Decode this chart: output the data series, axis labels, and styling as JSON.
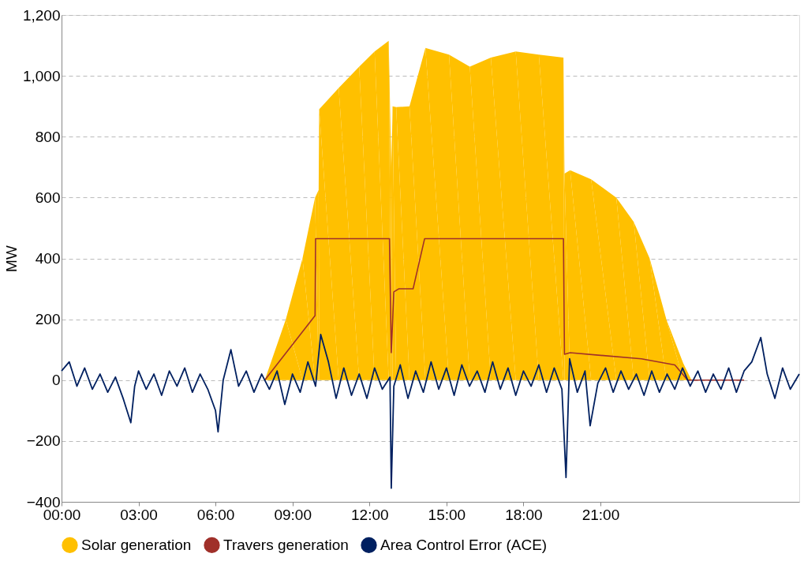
{
  "chart_data": {
    "type": "area",
    "ylabel": "MW",
    "legend": "bottom",
    "grid": "y",
    "xlim": [
      0,
      28.75
    ],
    "xticks": [
      {
        "value": 0,
        "label": "00:00"
      },
      {
        "value": 3,
        "label": "03:00"
      },
      {
        "value": 6,
        "label": "06:00"
      },
      {
        "value": 9,
        "label": "09:00"
      },
      {
        "value": 12,
        "label": "12:00"
      },
      {
        "value": 15,
        "label": "15:00"
      },
      {
        "value": 18,
        "label": "18:00"
      },
      {
        "value": 21,
        "label": "21:00"
      }
    ],
    "ylim": [
      -400,
      1200
    ],
    "yticks": [
      -400,
      -200,
      0,
      200,
      400,
      600,
      800,
      {
        "value": 1000,
        "label": "1,000"
      },
      {
        "value": 1200,
        "label": "1,200"
      }
    ],
    "series": [
      {
        "name": "Solar generation",
        "color": "#ffc000",
        "x": [
          7.92,
          8.74,
          9.39,
          9.88,
          10.02,
          10.04,
          10.8,
          11.6,
          12.2,
          12.75,
          12.85,
          12.9,
          13.04,
          13.56,
          14.18,
          15.1,
          15.91,
          16.73,
          17.7,
          18.6,
          19.56,
          19.6,
          19.82,
          20.64,
          21.62,
          22.3,
          22.92,
          23.57,
          24.23,
          24.55
        ],
        "values": [
          0,
          200,
          400,
          600,
          625,
          890,
          960,
          1030,
          1080,
          1115,
          700,
          900,
          897,
          900,
          1092,
          1070,
          1030,
          1060,
          1080,
          1070,
          1060,
          679,
          690,
          660,
          600,
          520,
          400,
          200,
          55,
          0
        ]
      },
      {
        "name": "Travers generation",
        "type": "line",
        "color": "#a0302a",
        "x": [
          7.92,
          9.88,
          9.9,
          12.78,
          12.85,
          12.95,
          13.14,
          13.7,
          14.15,
          19.56,
          19.6,
          19.82,
          22.6,
          23.9,
          24.4,
          26.6
        ],
        "values": [
          0,
          212,
          465,
          465,
          90,
          290,
          300,
          300,
          465,
          465,
          85,
          90,
          70,
          50,
          0,
          0
        ]
      },
      {
        "name": "Area Control Error (ACE)",
        "type": "line",
        "color": "#002060",
        "x": [
          0,
          0.3,
          0.6,
          0.9,
          1.2,
          1.5,
          1.8,
          2.1,
          2.4,
          2.7,
          2.85,
          3.0,
          3.3,
          3.6,
          3.9,
          4.2,
          4.5,
          4.8,
          5.1,
          5.4,
          5.7,
          6.0,
          6.1,
          6.3,
          6.6,
          6.9,
          7.2,
          7.5,
          7.8,
          8.1,
          8.4,
          8.7,
          9.0,
          9.3,
          9.6,
          9.9,
          10.1,
          10.4,
          10.7,
          11.0,
          11.3,
          11.6,
          11.9,
          12.2,
          12.5,
          12.8,
          12.85,
          12.95,
          13.2,
          13.5,
          13.8,
          14.1,
          14.4,
          14.7,
          15.0,
          15.3,
          15.6,
          15.9,
          16.2,
          16.5,
          16.8,
          17.1,
          17.4,
          17.7,
          18.0,
          18.3,
          18.6,
          18.9,
          19.2,
          19.5,
          19.66,
          19.8,
          20.1,
          20.4,
          20.6,
          20.9,
          21.2,
          21.5,
          21.8,
          22.1,
          22.4,
          22.7,
          23.0,
          23.3,
          23.6,
          23.9,
          24.2,
          24.5,
          24.8,
          25.1,
          25.4,
          25.7,
          26.0,
          26.3,
          26.6,
          26.9,
          27.25,
          27.5,
          27.8,
          28.1,
          28.4,
          28.75
        ],
        "values": [
          30,
          60,
          -20,
          40,
          -30,
          20,
          -40,
          10,
          -60,
          -140,
          -20,
          30,
          -30,
          20,
          -50,
          30,
          -20,
          40,
          -40,
          20,
          -30,
          -100,
          -170,
          0,
          100,
          -20,
          30,
          -40,
          20,
          -30,
          30,
          -80,
          20,
          -40,
          60,
          -20,
          150,
          60,
          -60,
          40,
          -50,
          20,
          -60,
          40,
          -30,
          10,
          -355,
          -20,
          50,
          -60,
          30,
          -40,
          60,
          -30,
          40,
          -50,
          50,
          -20,
          30,
          -40,
          60,
          -30,
          40,
          -50,
          30,
          -20,
          50,
          -40,
          40,
          -30,
          -320,
          70,
          -40,
          30,
          -150,
          -10,
          40,
          -40,
          30,
          -30,
          20,
          -50,
          30,
          -40,
          20,
          -30,
          40,
          -20,
          30,
          -40,
          20,
          -30,
          40,
          -40,
          30,
          60,
          140,
          20,
          -60,
          40,
          -30,
          20
        ]
      }
    ]
  }
}
